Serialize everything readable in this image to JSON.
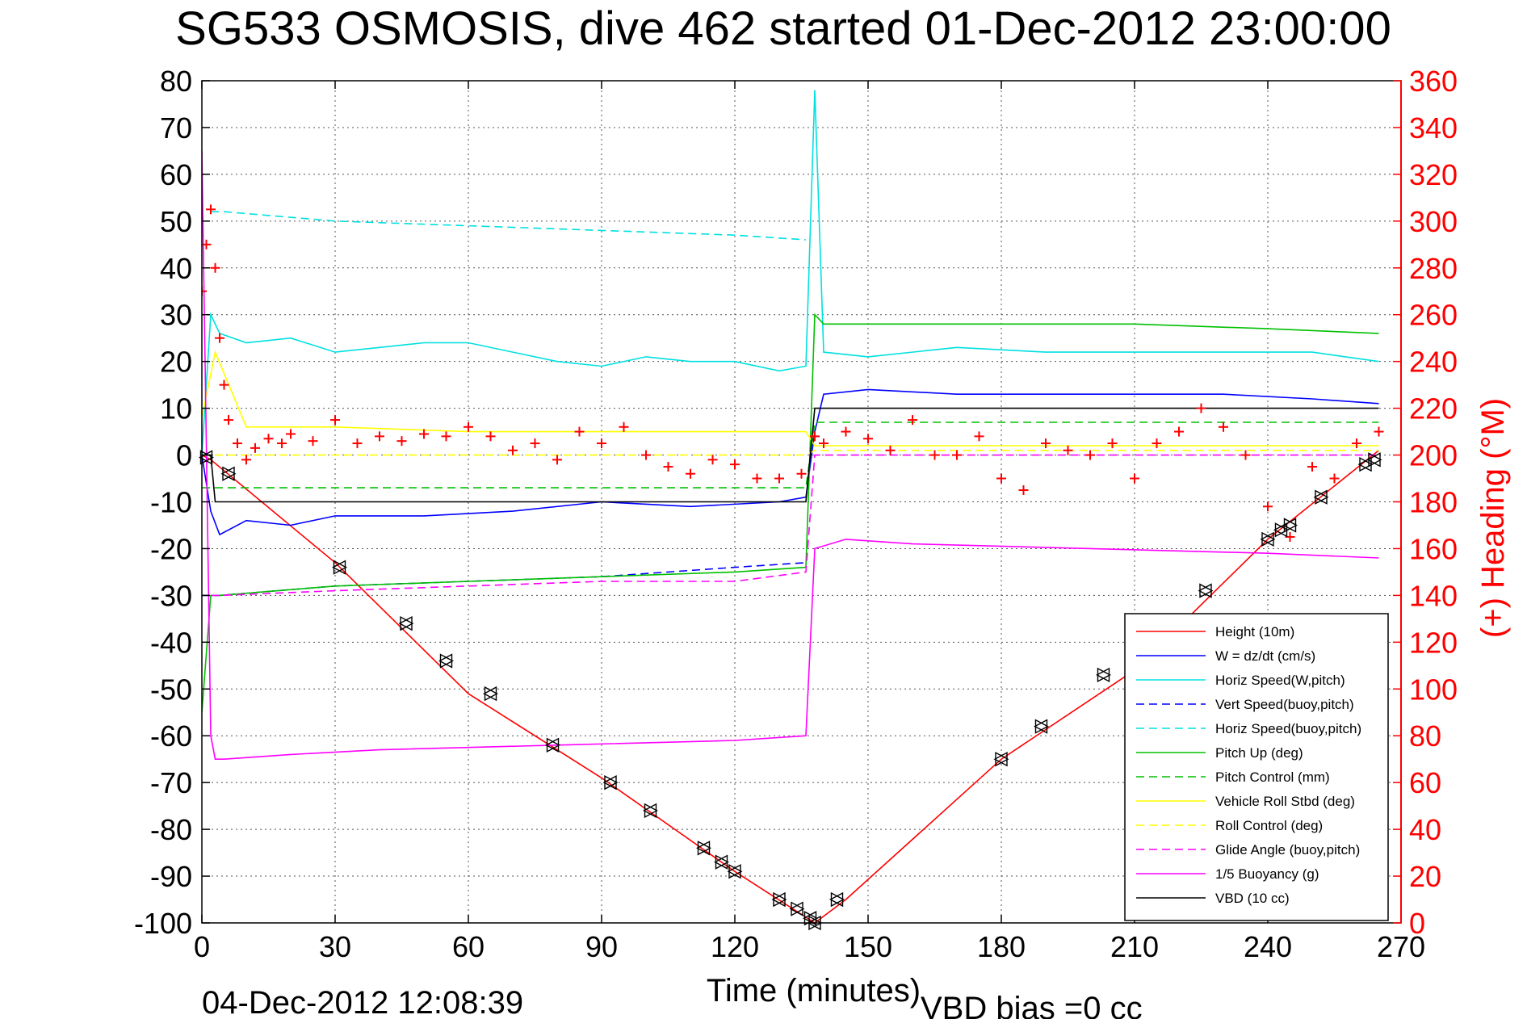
{
  "title": "SG533 OSMOSIS, dive 462 started 01-Dec-2012 23:00:00",
  "footer": {
    "timestamp": "04-Dec-2012 12:08:39",
    "vbd_bias": "VBD bias =0 cc"
  },
  "chart_data": {
    "type": "line",
    "title": "SG533 OSMOSIS, dive 462 started 01-Dec-2012 23:00:00",
    "xlabel": "Time (minutes)",
    "ylabel": "",
    "y2label": "(+) Heading (°M)",
    "xlim": [
      0,
      270
    ],
    "ylim": [
      -100,
      80
    ],
    "y2lim": [
      0,
      360
    ],
    "grid": true,
    "legend_position": "bottom-right",
    "xticks": [
      "0",
      "30",
      "60",
      "90",
      "120",
      "150",
      "180",
      "210",
      "240",
      "270"
    ],
    "yticks": [
      "-100",
      "-90",
      "-80",
      "-70",
      "-60",
      "-50",
      "-40",
      "-30",
      "-20",
      "-10",
      "0",
      "10",
      "20",
      "30",
      "40",
      "50",
      "60",
      "70",
      "80"
    ],
    "y2ticks": [
      "0",
      "20",
      "40",
      "60",
      "80",
      "100",
      "120",
      "140",
      "160",
      "180",
      "200",
      "220",
      "240",
      "260",
      "280",
      "300",
      "320",
      "340",
      "360"
    ],
    "series": [
      {
        "name": "Height (10m)",
        "color": "#ff0000",
        "style": "solid",
        "x": [
          0,
          2,
          30,
          60,
          90,
          120,
          138,
          145,
          180,
          210,
          240,
          265
        ],
        "y": [
          0,
          -1,
          -23,
          -51,
          -69,
          -89,
          -100,
          -95,
          -65,
          -46,
          -18,
          1
        ]
      },
      {
        "name": "W = dz/dt (cm/s)",
        "color": "#0000ff",
        "style": "solid",
        "x": [
          0,
          2,
          4,
          10,
          20,
          30,
          50,
          70,
          90,
          110,
          130,
          136,
          138,
          140,
          150,
          170,
          190,
          210,
          230,
          250,
          265
        ],
        "y": [
          0,
          -12,
          -17,
          -14,
          -15,
          -13,
          -13,
          -12,
          -10,
          -11,
          -10,
          -9,
          5,
          13,
          14,
          13,
          13,
          13,
          13,
          12,
          11
        ]
      },
      {
        "name": "Horiz Speed(W,pitch)",
        "color": "#00e0e0",
        "style": "solid",
        "x": [
          0,
          2,
          4,
          10,
          20,
          30,
          40,
          50,
          60,
          70,
          80,
          90,
          100,
          110,
          120,
          130,
          136,
          138,
          140,
          150,
          170,
          190,
          210,
          230,
          250,
          265
        ],
        "y": [
          0,
          30,
          26,
          24,
          25,
          22,
          23,
          24,
          24,
          22,
          20,
          19,
          21,
          20,
          20,
          18,
          19,
          78,
          22,
          21,
          23,
          22,
          22,
          22,
          22,
          20
        ]
      },
      {
        "name": "Vert Speed(buoy,pitch)",
        "color": "#0000ff",
        "style": "dashed",
        "x": [
          0,
          4,
          30,
          60,
          90,
          120,
          136
        ],
        "y": [
          -30,
          -30,
          -28,
          -27,
          -26,
          -24,
          -23
        ]
      },
      {
        "name": "Horiz Speed(buoy,pitch)",
        "color": "#00e0e0",
        "style": "dashed",
        "x": [
          2,
          5,
          30,
          60,
          90,
          120,
          136
        ],
        "y": [
          52,
          52,
          50,
          49,
          48,
          47,
          46
        ]
      },
      {
        "name": "Pitch Up (deg)",
        "color": "#00c000",
        "style": "solid",
        "x": [
          0,
          2,
          4,
          30,
          60,
          90,
          120,
          136,
          138,
          140,
          150,
          180,
          210,
          240,
          265
        ],
        "y": [
          -55,
          -30,
          -30,
          -28,
          -27,
          -26,
          -25,
          -24,
          30,
          28,
          28,
          28,
          28,
          27,
          26
        ]
      },
      {
        "name": "Pitch Control (mm)",
        "color": "#00c000",
        "style": "dashed",
        "x": [
          0,
          2,
          136,
          138,
          265
        ],
        "y": [
          -7,
          -7,
          -7,
          7,
          7
        ]
      },
      {
        "name": "Vehicle Roll Stbd (deg)",
        "color": "#ffff00",
        "style": "solid",
        "x": [
          0,
          3,
          10,
          30,
          60,
          90,
          120,
          136,
          138,
          150,
          180,
          210,
          240,
          265
        ],
        "y": [
          8,
          22,
          6,
          6,
          5,
          5,
          5,
          5,
          2,
          2,
          2,
          2,
          2,
          2
        ]
      },
      {
        "name": "Roll Control (deg)",
        "color": "#ffff00",
        "style": "dashed",
        "x": [
          0,
          136,
          138,
          265
        ],
        "y": [
          0,
          0,
          1,
          1
        ]
      },
      {
        "name": "Glide Angle (buoy,pitch)",
        "color": "#ff00ff",
        "style": "dashed",
        "x": [
          2,
          4,
          30,
          60,
          90,
          120,
          136,
          138,
          265
        ],
        "y": [
          -30,
          -30,
          -29,
          -28,
          -27,
          -27,
          -25,
          0,
          0
        ]
      },
      {
        "name": "1/5 Buoyancy (g)",
        "color": "#ff00ff",
        "style": "solid",
        "x": [
          0,
          2,
          3,
          5,
          20,
          40,
          80,
          120,
          136,
          138,
          145,
          160,
          200,
          240,
          265
        ],
        "y": [
          65,
          -60,
          -65,
          -65,
          -64,
          -63,
          -62,
          -61,
          -60,
          -20,
          -18,
          -19,
          -20,
          -21,
          -22
        ]
      },
      {
        "name": "VBD (10 cc)",
        "color": "#000000",
        "style": "solid",
        "x": [
          0,
          2,
          3,
          136,
          138,
          265
        ],
        "y": [
          0,
          0,
          -10,
          -10,
          10,
          10
        ]
      }
    ],
    "heading": {
      "name": "(+) Heading",
      "color": "#ff0000",
      "marker": "+",
      "x": [
        0,
        1,
        2,
        3,
        4,
        5,
        6,
        8,
        10,
        12,
        15,
        18,
        20,
        25,
        30,
        35,
        40,
        45,
        50,
        55,
        60,
        65,
        70,
        75,
        80,
        85,
        90,
        95,
        100,
        105,
        110,
        115,
        120,
        125,
        130,
        135,
        138,
        140,
        145,
        150,
        155,
        160,
        165,
        170,
        175,
        180,
        185,
        190,
        195,
        200,
        205,
        210,
        215,
        220,
        225,
        230,
        235,
        240,
        245,
        250,
        255,
        260,
        265
      ],
      "y": [
        270,
        290,
        305,
        280,
        250,
        230,
        215,
        205,
        198,
        203,
        207,
        205,
        209,
        206,
        215,
        205,
        208,
        206,
        209,
        208,
        212,
        208,
        202,
        205,
        198,
        210,
        205,
        212,
        200,
        195,
        192,
        198,
        196,
        190,
        190,
        192,
        208,
        205,
        210,
        207,
        202,
        215,
        200,
        200,
        208,
        190,
        185,
        205,
        202,
        200,
        205,
        190,
        205,
        210,
        220,
        212,
        200,
        178,
        165,
        195,
        190,
        205,
        210
      ]
    },
    "sample_markers": {
      "marker": "triangle",
      "color": "#000000",
      "x": [
        1,
        6,
        31,
        46,
        55,
        65,
        79,
        92,
        101,
        113,
        117,
        120,
        130,
        134,
        137,
        138,
        143,
        180,
        189,
        203,
        226,
        240,
        243,
        245,
        252,
        262,
        264
      ],
      "y": [
        -0.5,
        -4,
        -24,
        -36,
        -44,
        -51,
        -62,
        -70,
        -76,
        -84,
        -87,
        -89,
        -95,
        -97,
        -99,
        -100,
        -95,
        -65,
        -58,
        -47,
        -29,
        -18,
        -16,
        -15,
        -9,
        -2,
        -1
      ]
    },
    "legend_entries": [
      {
        "label": "Height (10m)",
        "color": "#ff0000",
        "style": "solid"
      },
      {
        "label": "W = dz/dt (cm/s)",
        "color": "#0000ff",
        "style": "solid"
      },
      {
        "label": "Horiz Speed(W,pitch)",
        "color": "#00e0e0",
        "style": "solid"
      },
      {
        "label": "Vert Speed(buoy,pitch)",
        "color": "#0000ff",
        "style": "dashed"
      },
      {
        "label": "Horiz Speed(buoy,pitch)",
        "color": "#00e0e0",
        "style": "dashed"
      },
      {
        "label": "Pitch Up (deg)",
        "color": "#00c000",
        "style": "solid"
      },
      {
        "label": "Pitch Control (mm)",
        "color": "#00c000",
        "style": "dashed"
      },
      {
        "label": "Vehicle Roll Stbd (deg)",
        "color": "#ffff00",
        "style": "solid"
      },
      {
        "label": "Roll Control (deg)",
        "color": "#ffff00",
        "style": "dashed"
      },
      {
        "label": "Glide Angle (buoy,pitch)",
        "color": "#ff00ff",
        "style": "dashed"
      },
      {
        "label": "1/5 Buoyancy (g)",
        "color": "#ff00ff",
        "style": "solid"
      },
      {
        "label": "VBD (10 cc)",
        "color": "#000000",
        "style": "solid"
      }
    ]
  }
}
